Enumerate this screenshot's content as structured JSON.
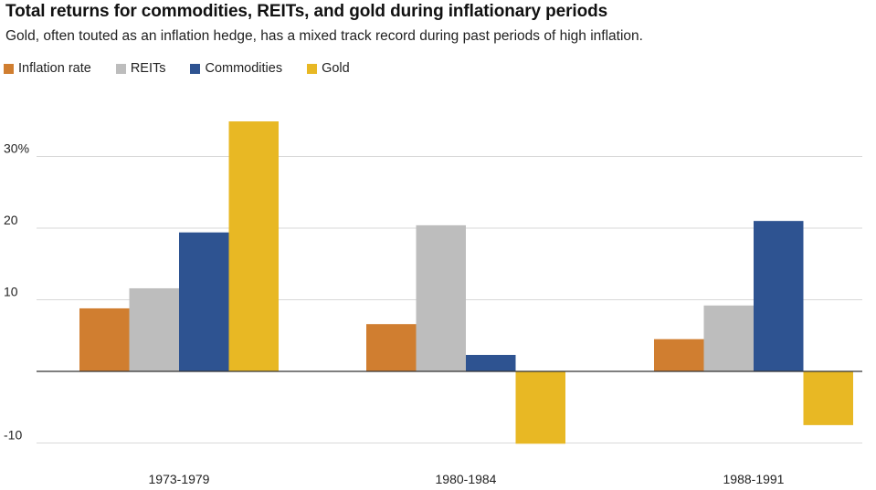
{
  "chart_data": {
    "type": "bar",
    "title": "Total returns for commodities, REITs, and gold during inflationary periods",
    "subtitle": "Gold, often touted as an inflation hedge, has a mixed track record during past periods of high inflation.",
    "categories": [
      "1973-1979",
      "1980-1984",
      "1988-1991"
    ],
    "series": [
      {
        "name": "Inflation rate",
        "color": "#D07E30",
        "values": [
          8.8,
          6.6,
          4.5
        ]
      },
      {
        "name": "REITs",
        "color": "#BDBDBD",
        "values": [
          11.6,
          20.4,
          9.2
        ]
      },
      {
        "name": "Commodities",
        "color": "#2E5391",
        "values": [
          19.4,
          2.3,
          21.0
        ]
      },
      {
        "name": "Gold",
        "color": "#E8B824",
        "values": [
          34.9,
          -10.1,
          -7.5
        ]
      }
    ],
    "yticks": [
      30,
      20,
      10,
      -10
    ],
    "ytick_labels": [
      "30%",
      "20",
      "10",
      "-10"
    ],
    "ylim": [
      -10.5,
      38
    ],
    "xlabel": "",
    "ylabel": "",
    "grid": true,
    "legend_position": "top-left"
  }
}
